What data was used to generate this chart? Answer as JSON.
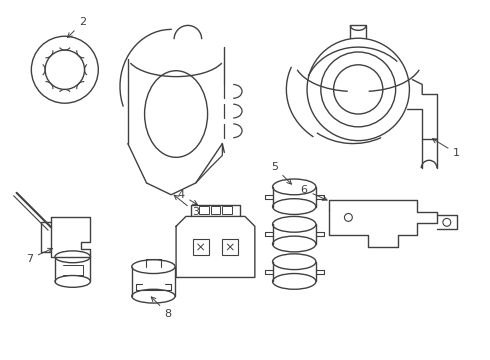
{
  "background_color": "#ffffff",
  "line_color": "#404040",
  "line_width": 1.0,
  "figsize": [
    4.9,
    3.6
  ],
  "dpi": 100
}
